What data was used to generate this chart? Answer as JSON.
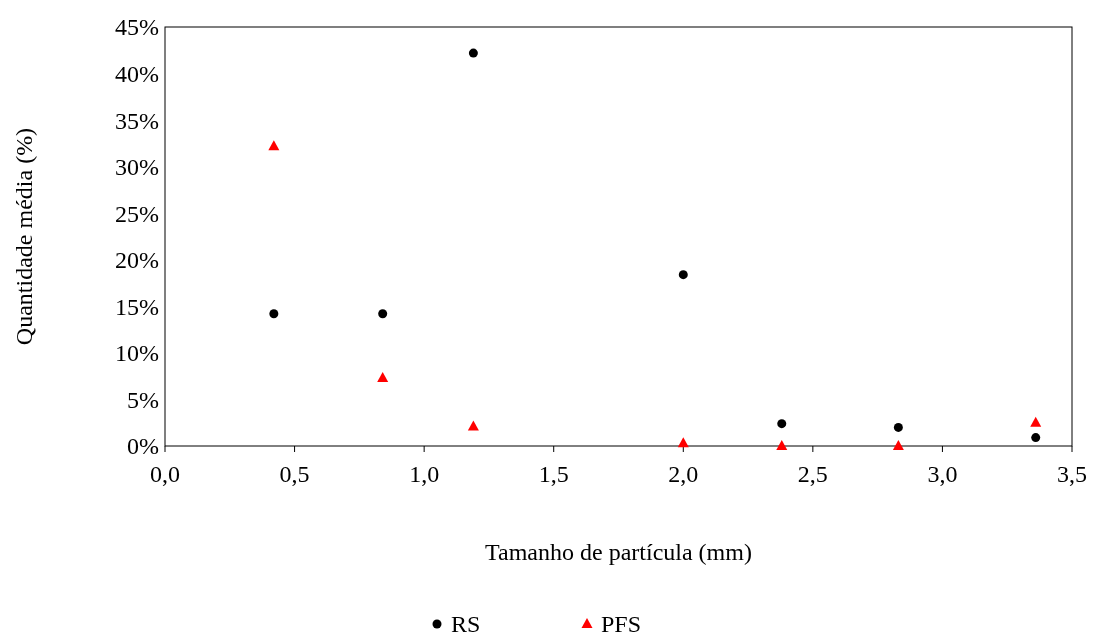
{
  "chart_data": {
    "type": "scatter",
    "xlabel": "Tamanho  de partícula (mm)",
    "ylabel": "Quantidade média (%)",
    "x": [
      0.42,
      0.84,
      1.19,
      2.0,
      2.38,
      2.83,
      3.36
    ],
    "series": [
      {
        "name": "RS",
        "color": "#000000",
        "marker": "circle",
        "values": [
          14.2,
          14.2,
          42.2,
          18.4,
          2.4,
          2.0,
          0.9
        ]
      },
      {
        "name": "PFS",
        "color": "#ff0000",
        "marker": "triangle",
        "values": [
          32.2,
          7.3,
          2.1,
          0.3,
          0,
          0,
          2.5
        ]
      }
    ],
    "xlim": [
      0,
      3.5
    ],
    "ylim": [
      0,
      45
    ],
    "xticks": [
      {
        "value": 0,
        "label": "0,0"
      },
      {
        "value": 0.5,
        "label": "0,5"
      },
      {
        "value": 1,
        "label": "1,0"
      },
      {
        "value": 1.5,
        "label": "1,5"
      },
      {
        "value": 2,
        "label": "2,0"
      },
      {
        "value": 2.5,
        "label": "2,5"
      },
      {
        "value": 3,
        "label": "3,0"
      },
      {
        "value": 3.5,
        "label": "3,5"
      }
    ],
    "yticks": [
      {
        "value": 0,
        "label": "0%"
      },
      {
        "value": 5,
        "label": "5%"
      },
      {
        "value": 10,
        "label": "10%"
      },
      {
        "value": 15,
        "label": "15%"
      },
      {
        "value": 20,
        "label": "20%"
      },
      {
        "value": 25,
        "label": "25%"
      },
      {
        "value": 30,
        "label": "30%"
      },
      {
        "value": 35,
        "label": "35%"
      },
      {
        "value": 40,
        "label": "40%"
      },
      {
        "value": 45,
        "label": "45%"
      }
    ],
    "grid": false,
    "legend": "bottom"
  }
}
